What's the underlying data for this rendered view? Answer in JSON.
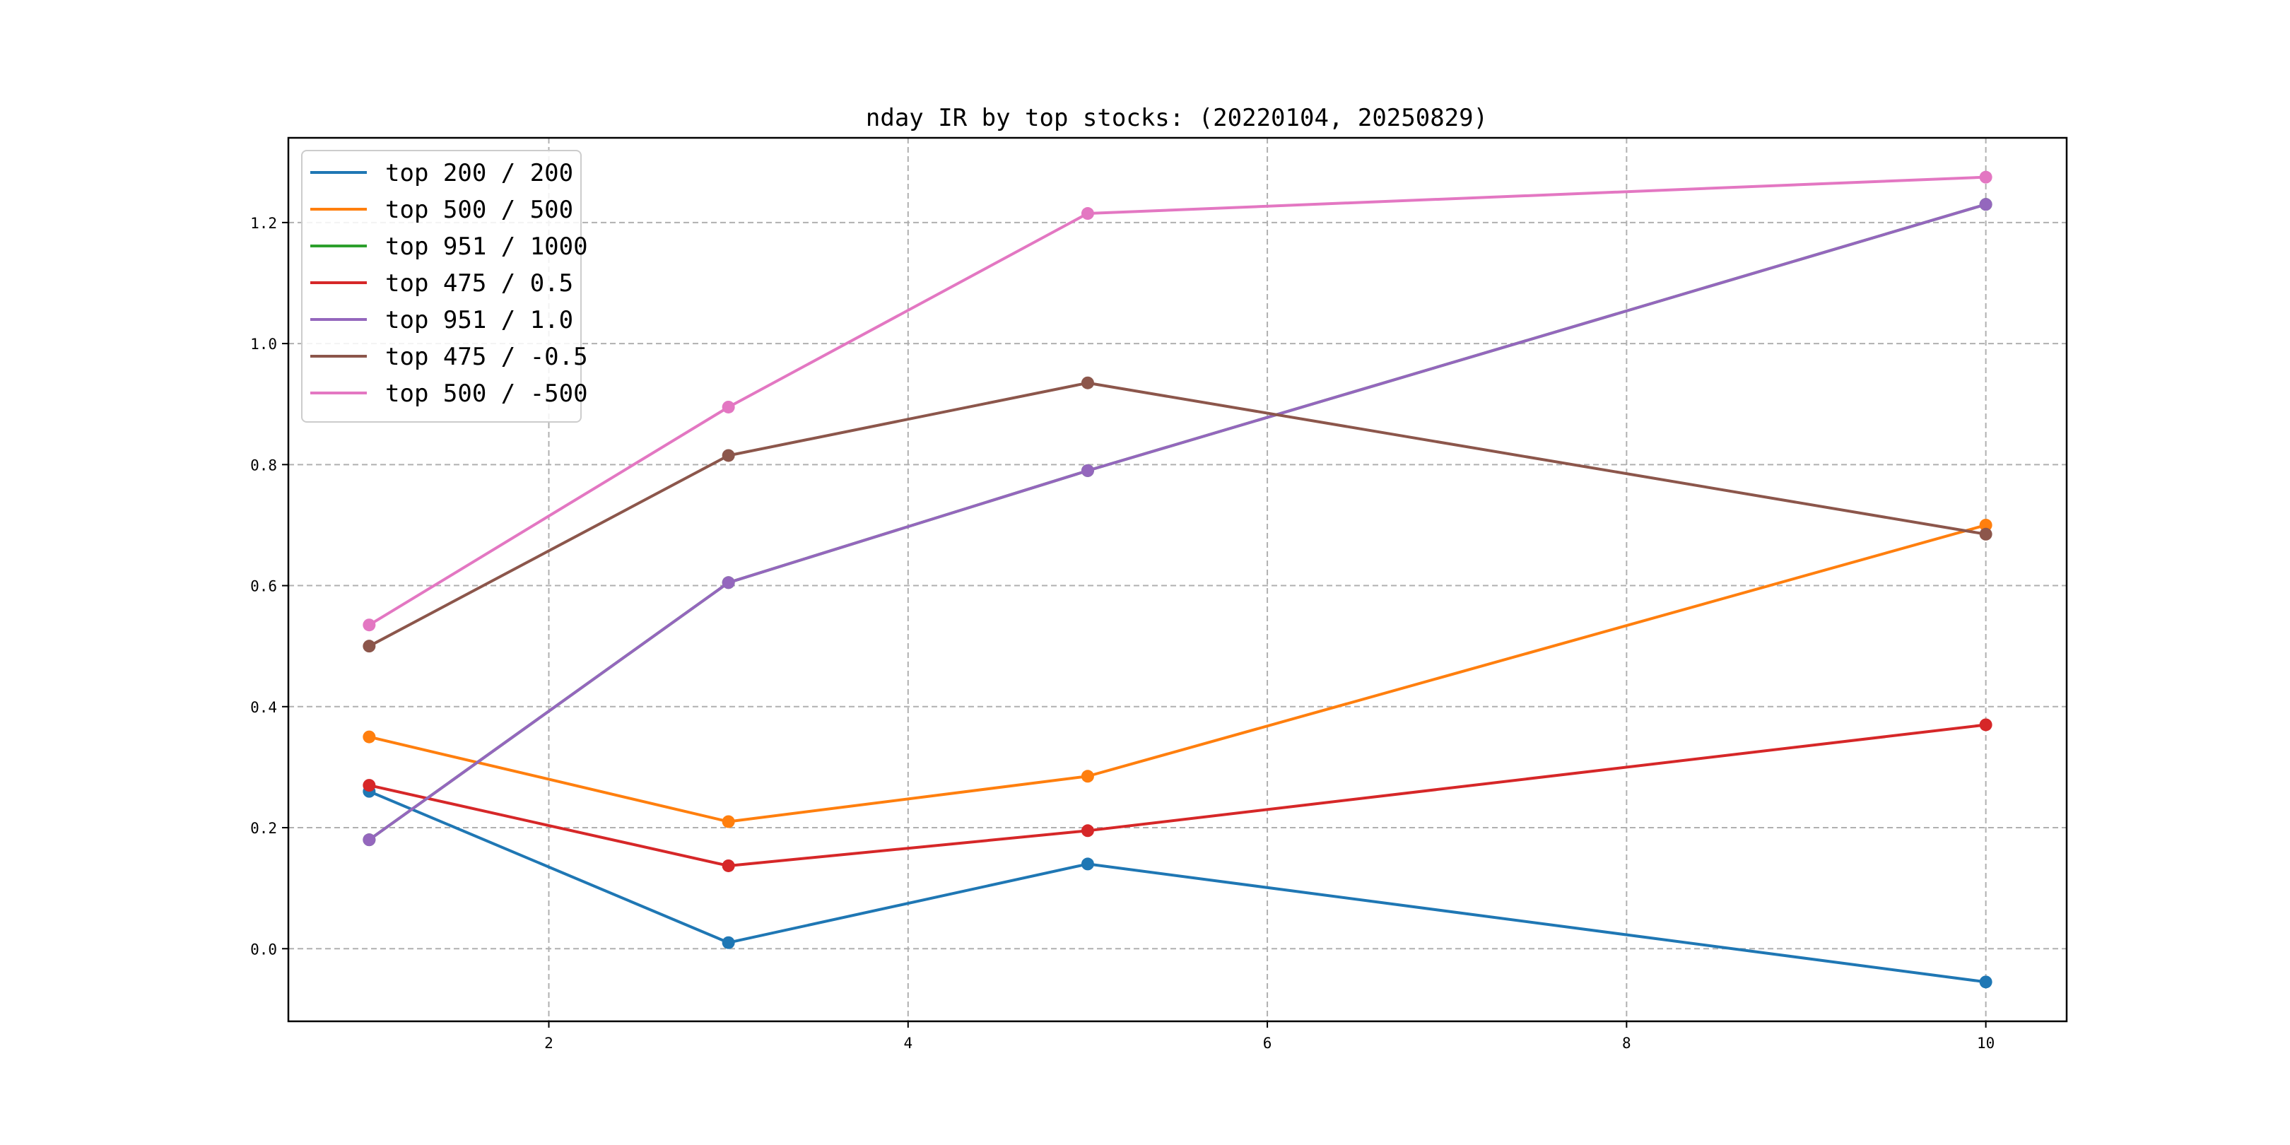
{
  "chart_data": {
    "type": "line",
    "title": "nday IR by top stocks: (20220104, 20250829)",
    "xlabel": "",
    "ylabel": "",
    "xlim": [
      0.55,
      10.45
    ],
    "ylim": [
      -0.12,
      1.34
    ],
    "xticks": [
      2,
      4,
      6,
      8,
      10
    ],
    "xtick_labels": [
      "2",
      "4",
      "6",
      "8",
      "10"
    ],
    "yticks": [
      0.0,
      0.2,
      0.4,
      0.6,
      0.8,
      1.0,
      1.2
    ],
    "ytick_labels": [
      "0.0",
      "0.2",
      "0.4",
      "0.6",
      "0.8",
      "1.0",
      "1.2"
    ],
    "grid": true,
    "legend_position": "upper-left",
    "x": [
      1,
      3,
      5,
      10
    ],
    "series": [
      {
        "name": "top 200 / 200",
        "color": "#1f77b4",
        "values": [
          0.26,
          0.01,
          0.14,
          -0.055
        ]
      },
      {
        "name": "top 500 / 500",
        "color": "#ff7f0e",
        "values": [
          0.35,
          0.21,
          0.285,
          0.7
        ]
      },
      {
        "name": "top 951 / 1000",
        "color": "#2ca02c",
        "values": [
          0.18,
          0.605,
          0.79,
          1.23
        ]
      },
      {
        "name": "top 475 / 0.5",
        "color": "#d62728",
        "values": [
          0.27,
          0.137,
          0.195,
          0.37
        ]
      },
      {
        "name": "top 951 / 1.0",
        "color": "#9467bd",
        "values": [
          0.18,
          0.605,
          0.79,
          1.23
        ]
      },
      {
        "name": "top 475 / -0.5",
        "color": "#8c564b",
        "values": [
          0.5,
          0.815,
          0.935,
          0.685
        ]
      },
      {
        "name": "top 500 / -500",
        "color": "#e377c2",
        "values": [
          0.535,
          0.895,
          1.215,
          1.275
        ]
      }
    ]
  }
}
